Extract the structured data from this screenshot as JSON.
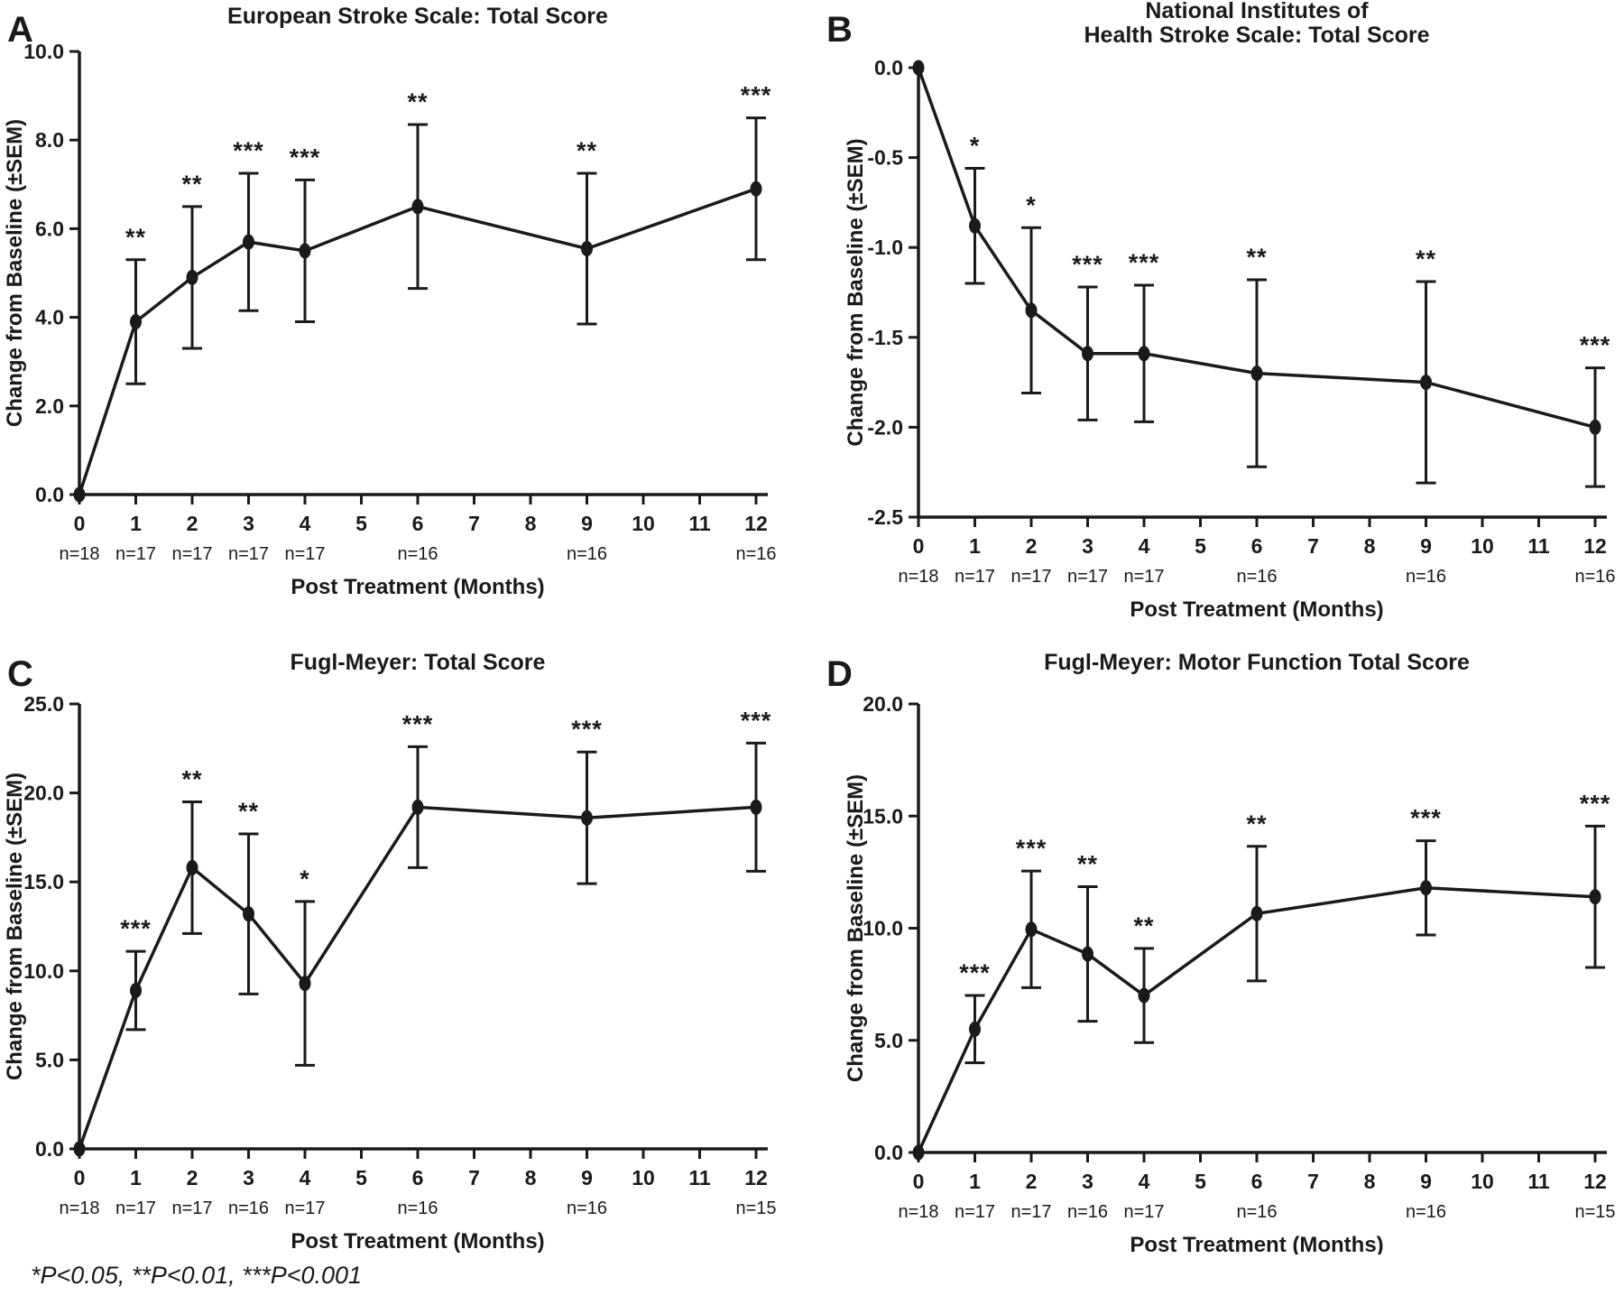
{
  "figure": {
    "footnote": "*P<0.05, **P<0.01, ***P<0.001"
  },
  "chart_data": [
    {
      "type": "line",
      "panel_label": "A",
      "title_lines": [
        "European Stroke Scale: Total Score"
      ],
      "ylabel": "Change from Baseline (±SEM)",
      "xlabel": "Post Treatment (Months)",
      "xlim": [
        0,
        12
      ],
      "ylim": [
        0,
        10
      ],
      "xticks": [
        0,
        1,
        2,
        3,
        4,
        5,
        6,
        7,
        8,
        9,
        10,
        11,
        12
      ],
      "ytick_values": [
        0,
        2,
        4,
        6,
        8,
        10
      ],
      "ytick_labels": [
        "0.0",
        "2.0",
        "4.0",
        "6.0",
        "8.0",
        "10.0"
      ],
      "x": [
        0,
        1,
        2,
        3,
        4,
        6,
        9,
        12
      ],
      "values": [
        0,
        3.9,
        4.9,
        5.7,
        5.5,
        6.5,
        5.55,
        6.9
      ],
      "sem": [
        0,
        1.4,
        1.6,
        1.55,
        1.6,
        1.85,
        1.7,
        1.6
      ],
      "significance": [
        "",
        "**",
        "**",
        "***",
        "***",
        "**",
        "**",
        "***"
      ],
      "n_labels": [
        "n=18",
        "n=17",
        "n=17",
        "n=17",
        "n=17",
        "n=16",
        "n=16",
        "n=16"
      ],
      "line_color": "#1a1a1a",
      "legend": "none",
      "grid": "off"
    },
    {
      "type": "line",
      "panel_label": "B",
      "title_lines": [
        "National Institutes of",
        "Health Stroke Scale: Total Score"
      ],
      "ylabel": "Change from Baseline (±SEM)",
      "xlabel": "Post Treatment (Months)",
      "xlim": [
        0,
        12
      ],
      "ylim": [
        -2.5,
        0
      ],
      "xticks": [
        0,
        1,
        2,
        3,
        4,
        5,
        6,
        7,
        8,
        9,
        10,
        11,
        12
      ],
      "ytick_values": [
        0,
        -0.5,
        -1.0,
        -1.5,
        -2.0,
        -2.5
      ],
      "ytick_labels": [
        "0.0",
        "-0.5",
        "-1.0",
        "-1.5",
        "-2.0",
        "-2.5"
      ],
      "x": [
        0,
        1,
        2,
        3,
        4,
        6,
        9,
        12
      ],
      "values": [
        0,
        -0.88,
        -1.35,
        -1.59,
        -1.59,
        -1.7,
        -1.75,
        -2.0
      ],
      "sem": [
        0,
        0.32,
        0.46,
        0.37,
        0.38,
        0.52,
        0.56,
        0.33
      ],
      "significance": [
        "",
        "*",
        "*",
        "***",
        "***",
        "**",
        "**",
        "***"
      ],
      "n_labels": [
        "n=18",
        "n=17",
        "n=17",
        "n=17",
        "n=17",
        "n=16",
        "n=16",
        "n=16"
      ],
      "line_color": "#1a1a1a",
      "legend": "none",
      "grid": "off"
    },
    {
      "type": "line",
      "panel_label": "C",
      "title_lines": [
        "Fugl-Meyer: Total Score"
      ],
      "ylabel": "Change from Baseline (±SEM)",
      "xlabel": "Post Treatment (Months)",
      "xlim": [
        0,
        12
      ],
      "ylim": [
        0,
        25
      ],
      "xticks": [
        0,
        1,
        2,
        3,
        4,
        5,
        6,
        7,
        8,
        9,
        10,
        11,
        12
      ],
      "ytick_values": [
        0,
        5,
        10,
        15,
        20,
        25
      ],
      "ytick_labels": [
        "0.0",
        "5.0",
        "10.0",
        "15.0",
        "20.0",
        "25.0"
      ],
      "x": [
        0,
        1,
        2,
        3,
        4,
        6,
        9,
        12
      ],
      "values": [
        0,
        8.9,
        15.8,
        13.2,
        9.3,
        19.2,
        18.6,
        19.2
      ],
      "sem": [
        0,
        2.2,
        3.7,
        4.5,
        4.6,
        3.4,
        3.7,
        3.6
      ],
      "significance": [
        "",
        "***",
        "**",
        "**",
        "*",
        "***",
        "***",
        "***"
      ],
      "n_labels": [
        "n=18",
        "n=17",
        "n=17",
        "n=16",
        "n=17",
        "n=16",
        "n=16",
        "n=15"
      ],
      "line_color": "#1a1a1a",
      "legend": "none",
      "grid": "off"
    },
    {
      "type": "line",
      "panel_label": "D",
      "title_lines": [
        "Fugl-Meyer: Motor Function Total Score"
      ],
      "ylabel": "Change from Baseline (±SEM)",
      "xlabel": "Post Treatment (Months)",
      "xlim": [
        0,
        12
      ],
      "ylim": [
        0,
        20
      ],
      "xticks": [
        0,
        1,
        2,
        3,
        4,
        5,
        6,
        7,
        8,
        9,
        10,
        11,
        12
      ],
      "ytick_values": [
        0,
        5,
        10,
        15,
        20
      ],
      "ytick_labels": [
        "0.0",
        "5.0",
        "10.0",
        "15.0",
        "20.0"
      ],
      "x": [
        0,
        1,
        2,
        3,
        4,
        6,
        9,
        12
      ],
      "values": [
        0,
        5.5,
        9.95,
        8.85,
        7.0,
        10.65,
        11.8,
        11.4
      ],
      "sem": [
        0,
        1.5,
        2.6,
        3.0,
        2.1,
        3.0,
        2.1,
        3.15
      ],
      "significance": [
        "",
        "***",
        "***",
        "**",
        "**",
        "**",
        "***",
        "***"
      ],
      "n_labels": [
        "n=18",
        "n=17",
        "n=17",
        "n=16",
        "n=17",
        "n=16",
        "n=16",
        "n=15"
      ],
      "line_color": "#1a1a1a",
      "legend": "none",
      "grid": "off"
    }
  ]
}
